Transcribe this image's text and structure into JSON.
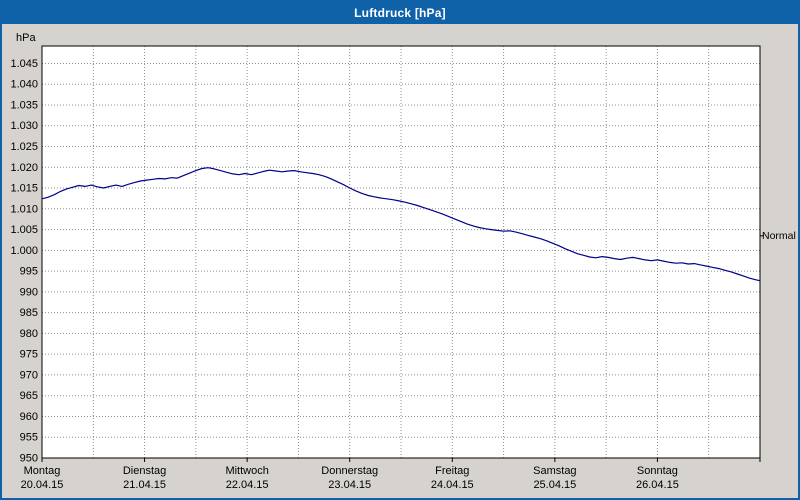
{
  "window": {
    "title": "Luftdruck [hPa]"
  },
  "axis_unit_label": "hPa",
  "normal_label": "Normal",
  "colors": {
    "title_bar": "#0f62a7",
    "window_border": "#0f62a7",
    "background": "#d6d3ce",
    "plot_background": "#ffffff",
    "plot_border": "#000000",
    "grid": "#8c8c8c",
    "line": "#00008b",
    "text": "#000000"
  },
  "chart_data": {
    "type": "line",
    "title": "Luftdruck [hPa]",
    "ylabel": "hPa",
    "ylim": [
      950,
      1049.2
    ],
    "ytick_step": 5,
    "yticks": [
      {
        "value": 1045,
        "label": "1.045"
      },
      {
        "value": 1040,
        "label": "1.040"
      },
      {
        "value": 1035,
        "label": "1.035"
      },
      {
        "value": 1030,
        "label": "1.030"
      },
      {
        "value": 1025,
        "label": "1.025"
      },
      {
        "value": 1020,
        "label": "1.020"
      },
      {
        "value": 1015,
        "label": "1.015"
      },
      {
        "value": 1010,
        "label": "1.010"
      },
      {
        "value": 1005,
        "label": "1.005"
      },
      {
        "value": 1000,
        "label": "1.000"
      },
      {
        "value": 995,
        "label": "995"
      },
      {
        "value": 990,
        "label": "990"
      },
      {
        "value": 985,
        "label": "985"
      },
      {
        "value": 980,
        "label": "980"
      },
      {
        "value": 975,
        "label": "975"
      },
      {
        "value": 970,
        "label": "970"
      },
      {
        "value": 965,
        "label": "965"
      },
      {
        "value": 960,
        "label": "960"
      },
      {
        "value": 955,
        "label": "955"
      },
      {
        "value": 950,
        "label": "950"
      }
    ],
    "x_days": [
      {
        "name": "Montag",
        "date": "20.04.15"
      },
      {
        "name": "Dienstag",
        "date": "21.04.15"
      },
      {
        "name": "Mittwoch",
        "date": "22.04.15"
      },
      {
        "name": "Donnerstag",
        "date": "23.04.15"
      },
      {
        "name": "Freitag",
        "date": "24.04.15"
      },
      {
        "name": "Samstag",
        "date": "25.04.15"
      },
      {
        "name": "Sonntag",
        "date": "26.04.15"
      }
    ],
    "x_range_days": 7,
    "grid": "dotted, horizontal every 5 hPa, vertical every 0.5 day",
    "legend_position": "none",
    "normal_value": 1003.5,
    "series": [
      {
        "name": "Luftdruck",
        "color": "#00008b",
        "points": [
          [
            0.0,
            1012.4
          ],
          [
            0.06,
            1012.8
          ],
          [
            0.12,
            1013.4
          ],
          [
            0.18,
            1014.2
          ],
          [
            0.24,
            1014.8
          ],
          [
            0.3,
            1015.2
          ],
          [
            0.36,
            1015.6
          ],
          [
            0.42,
            1015.4
          ],
          [
            0.48,
            1015.7
          ],
          [
            0.54,
            1015.3
          ],
          [
            0.6,
            1015.0
          ],
          [
            0.66,
            1015.4
          ],
          [
            0.72,
            1015.7
          ],
          [
            0.78,
            1015.4
          ],
          [
            0.84,
            1015.9
          ],
          [
            0.9,
            1016.3
          ],
          [
            0.96,
            1016.7
          ],
          [
            1.02,
            1016.9
          ],
          [
            1.08,
            1017.1
          ],
          [
            1.14,
            1017.3
          ],
          [
            1.2,
            1017.2
          ],
          [
            1.26,
            1017.5
          ],
          [
            1.32,
            1017.4
          ],
          [
            1.38,
            1018.0
          ],
          [
            1.44,
            1018.6
          ],
          [
            1.5,
            1019.2
          ],
          [
            1.56,
            1019.7
          ],
          [
            1.62,
            1019.9
          ],
          [
            1.68,
            1019.6
          ],
          [
            1.74,
            1019.2
          ],
          [
            1.8,
            1018.8
          ],
          [
            1.86,
            1018.4
          ],
          [
            1.92,
            1018.2
          ],
          [
            1.98,
            1018.5
          ],
          [
            2.04,
            1018.2
          ],
          [
            2.1,
            1018.6
          ],
          [
            2.16,
            1019.0
          ],
          [
            2.22,
            1019.3
          ],
          [
            2.28,
            1019.1
          ],
          [
            2.34,
            1018.9
          ],
          [
            2.4,
            1019.1
          ],
          [
            2.46,
            1019.2
          ],
          [
            2.52,
            1018.9
          ],
          [
            2.58,
            1018.7
          ],
          [
            2.64,
            1018.5
          ],
          [
            2.7,
            1018.2
          ],
          [
            2.76,
            1017.8
          ],
          [
            2.82,
            1017.2
          ],
          [
            2.88,
            1016.5
          ],
          [
            2.94,
            1015.8
          ],
          [
            3.0,
            1015.0
          ],
          [
            3.06,
            1014.3
          ],
          [
            3.12,
            1013.7
          ],
          [
            3.18,
            1013.2
          ],
          [
            3.24,
            1012.9
          ],
          [
            3.3,
            1012.6
          ],
          [
            3.36,
            1012.4
          ],
          [
            3.42,
            1012.2
          ],
          [
            3.48,
            1011.9
          ],
          [
            3.54,
            1011.6
          ],
          [
            3.6,
            1011.2
          ],
          [
            3.66,
            1010.8
          ],
          [
            3.72,
            1010.3
          ],
          [
            3.78,
            1009.8
          ],
          [
            3.84,
            1009.3
          ],
          [
            3.9,
            1008.8
          ],
          [
            3.96,
            1008.2
          ],
          [
            4.02,
            1007.6
          ],
          [
            4.08,
            1007.0
          ],
          [
            4.14,
            1006.4
          ],
          [
            4.2,
            1005.9
          ],
          [
            4.26,
            1005.5
          ],
          [
            4.32,
            1005.2
          ],
          [
            4.38,
            1005.0
          ],
          [
            4.44,
            1004.8
          ],
          [
            4.5,
            1004.6
          ],
          [
            4.56,
            1004.7
          ],
          [
            4.62,
            1004.4
          ],
          [
            4.68,
            1004.0
          ],
          [
            4.74,
            1003.6
          ],
          [
            4.8,
            1003.2
          ],
          [
            4.86,
            1002.8
          ],
          [
            4.92,
            1002.3
          ],
          [
            4.98,
            1001.7
          ],
          [
            5.04,
            1001.1
          ],
          [
            5.1,
            1000.4
          ],
          [
            5.16,
            999.8
          ],
          [
            5.22,
            999.2
          ],
          [
            5.28,
            998.8
          ],
          [
            5.34,
            998.4
          ],
          [
            5.4,
            998.2
          ],
          [
            5.46,
            998.5
          ],
          [
            5.52,
            998.3
          ],
          [
            5.58,
            998.0
          ],
          [
            5.64,
            997.8
          ],
          [
            5.7,
            998.1
          ],
          [
            5.76,
            998.3
          ],
          [
            5.82,
            998.0
          ],
          [
            5.88,
            997.7
          ],
          [
            5.94,
            997.5
          ],
          [
            6.0,
            997.7
          ],
          [
            6.06,
            997.4
          ],
          [
            6.12,
            997.1
          ],
          [
            6.18,
            996.9
          ],
          [
            6.24,
            997.0
          ],
          [
            6.3,
            996.7
          ],
          [
            6.36,
            996.8
          ],
          [
            6.42,
            996.5
          ],
          [
            6.48,
            996.2
          ],
          [
            6.54,
            995.9
          ],
          [
            6.6,
            995.6
          ],
          [
            6.66,
            995.2
          ],
          [
            6.72,
            994.8
          ],
          [
            6.78,
            994.3
          ],
          [
            6.84,
            993.8
          ],
          [
            6.9,
            993.3
          ],
          [
            6.96,
            992.9
          ],
          [
            7.0,
            992.7
          ]
        ]
      }
    ]
  }
}
